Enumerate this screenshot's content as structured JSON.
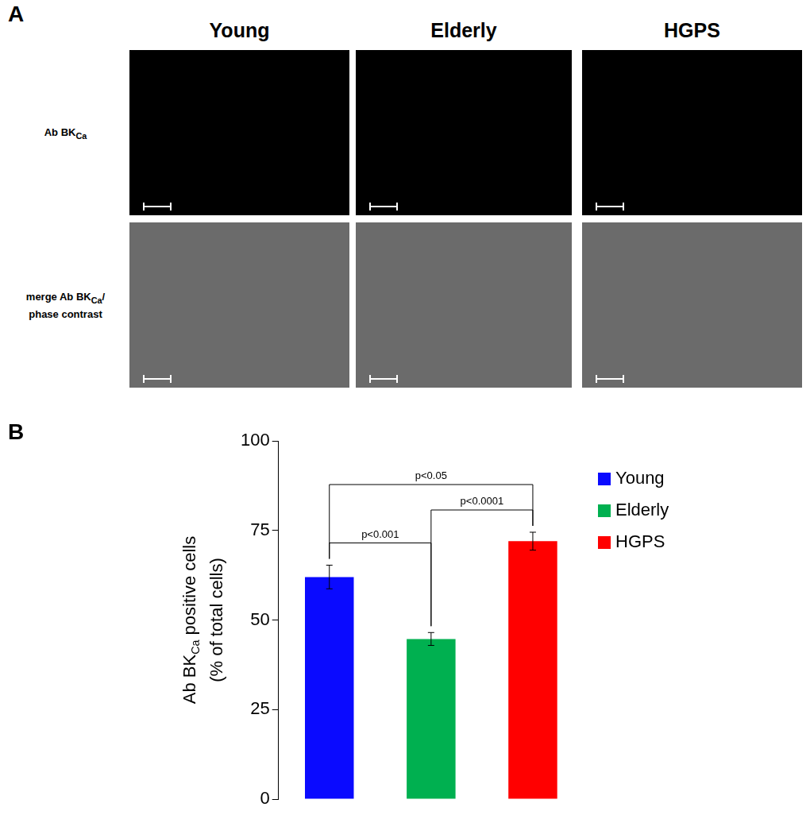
{
  "panel_labels": [
    "A",
    "B"
  ],
  "image_panel": {
    "columns": [
      "Young",
      "Elderly",
      "HGPS"
    ],
    "rows": [
      {
        "lines": [
          [
            {
              "text": "Ab BK"
            },
            {
              "text": "Ca",
              "sub": true
            }
          ]
        ]
      },
      {
        "lines": [
          [
            {
              "text": "merge Ab BK"
            },
            {
              "text": "Ca",
              "sub": true
            },
            {
              "text": "/"
            }
          ],
          [
            {
              "text": "phase contrast"
            }
          ]
        ]
      }
    ]
  },
  "chart_data": {
    "type": "bar",
    "categories": [
      "Young",
      "Elderly",
      "HGPS"
    ],
    "values": [
      62,
      44.7,
      72
    ],
    "errors": [
      3.3,
      1.8,
      2.5
    ],
    "colors": [
      "#0a0aff",
      "#00b050",
      "#ff0000"
    ],
    "ylim": [
      0,
      100
    ],
    "yticks": [
      0,
      25,
      50,
      75,
      100
    ],
    "y_label": [
      [
        {
          "text": "Ab BK"
        },
        {
          "text": "Ca",
          "sub": true
        },
        {
          "text": " positive cells"
        }
      ],
      [
        {
          "text": "(% of total cells)"
        }
      ]
    ],
    "grid": false,
    "legend": "right",
    "tick_labels": "y",
    "annotations": [
      {
        "text": "p<0.05",
        "between": [
          "Young",
          "HGPS"
        ]
      },
      {
        "text": "p<0.001",
        "between": [
          "Young",
          "Elderly"
        ]
      },
      {
        "text": "p<0.0001",
        "between": [
          "Elderly",
          "HGPS"
        ]
      }
    ]
  }
}
